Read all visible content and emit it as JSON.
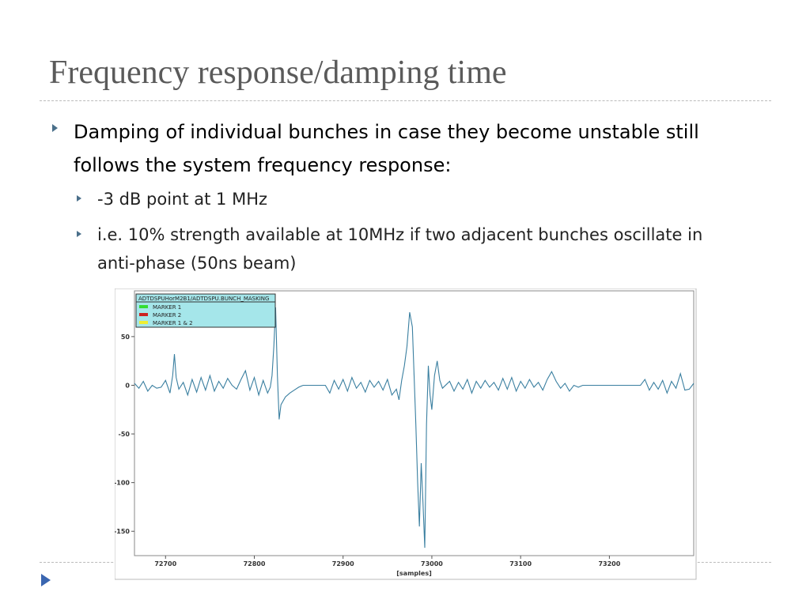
{
  "title": "Frequency response/damping time",
  "bullets": [
    {
      "text": "Damping of individual bunches in case they become unstable still follows the system frequency response:",
      "sub": [
        "-3 dB point at 1 MHz",
        "i.e. 10% strength available at 10MHz if two adjacent bunches oscillate in anti-phase (50ns beam)"
      ]
    }
  ],
  "chart_data": {
    "type": "line",
    "xlabel": "[samples]",
    "legend": {
      "title": "ADTDSPUHorM2B1/ADTDSPU.BUNCH_MASKING",
      "entries": [
        {
          "name": "MARKER 1",
          "color": "#33dd33"
        },
        {
          "name": "MARKER 2",
          "color": "#cc2222"
        },
        {
          "name": "MARKER 1 & 2",
          "color": "#eeee33"
        }
      ]
    },
    "xlim": [
      72665,
      73295
    ],
    "ylim": [
      -175,
      97
    ],
    "xticks": [
      72700,
      72800,
      72900,
      73000,
      73100,
      73200
    ],
    "yticks": [
      50,
      0,
      -50,
      -100,
      -150
    ],
    "series": [
      {
        "color": "#3a7fa0",
        "x": [
          72665,
          72670,
          72675,
          72680,
          72685,
          72690,
          72695,
          72700,
          72705,
          72708,
          72710,
          72712,
          72715,
          72720,
          72725,
          72730,
          72735,
          72740,
          72745,
          72750,
          72755,
          72760,
          72765,
          72770,
          72775,
          72780,
          72785,
          72790,
          72795,
          72800,
          72805,
          72810,
          72815,
          72818,
          72820,
          72822,
          72824,
          72826,
          72828,
          72830,
          72835,
          72840,
          72845,
          72850,
          72855,
          72880,
          72885,
          72890,
          72895,
          72900,
          72905,
          72910,
          72915,
          72920,
          72925,
          72930,
          72935,
          72940,
          72945,
          72950,
          72955,
          72960,
          72963,
          72966,
          72969,
          72972,
          72975,
          72978,
          72980,
          72982,
          72984,
          72986,
          72988,
          72990,
          72992,
          72994,
          72996,
          72998,
          73000,
          73003,
          73006,
          73009,
          73012,
          73020,
          73025,
          73030,
          73035,
          73040,
          73045,
          73050,
          73055,
          73060,
          73065,
          73070,
          73075,
          73080,
          73085,
          73090,
          73095,
          73100,
          73105,
          73110,
          73115,
          73120,
          73125,
          73130,
          73135,
          73140,
          73145,
          73150,
          73155,
          73160,
          73165,
          73170,
          73235,
          73240,
          73245,
          73250,
          73255,
          73260,
          73265,
          73270,
          73275,
          73280,
          73285,
          73290,
          73295
        ],
        "values": [
          2,
          -3,
          4,
          -6,
          0,
          -3,
          -2,
          5,
          -8,
          10,
          32,
          8,
          -4,
          3,
          -10,
          6,
          -7,
          8,
          -5,
          10,
          -6,
          4,
          -3,
          7,
          0,
          -4,
          6,
          15,
          -5,
          8,
          -10,
          5,
          -8,
          -2,
          10,
          40,
          80,
          10,
          -35,
          -20,
          -12,
          -8,
          -5,
          -2,
          0,
          0,
          -8,
          5,
          -4,
          6,
          -6,
          8,
          -3,
          3,
          -7,
          5,
          -2,
          4,
          -5,
          6,
          -10,
          -4,
          -15,
          5,
          20,
          40,
          75,
          60,
          10,
          -40,
          -100,
          -145,
          -80,
          -120,
          -167,
          -40,
          20,
          -10,
          -25,
          10,
          25,
          5,
          -3,
          4,
          -6,
          3,
          -4,
          6,
          -8,
          4,
          -3,
          5,
          -2,
          3,
          -5,
          7,
          -4,
          8,
          -6,
          4,
          -3,
          6,
          -2,
          3,
          -5,
          6,
          14,
          4,
          -3,
          2,
          -6,
          0,
          -2,
          0,
          0,
          6,
          -5,
          3,
          -4,
          5,
          -8,
          4,
          -3,
          12,
          -5,
          -4,
          2
        ]
      }
    ]
  }
}
